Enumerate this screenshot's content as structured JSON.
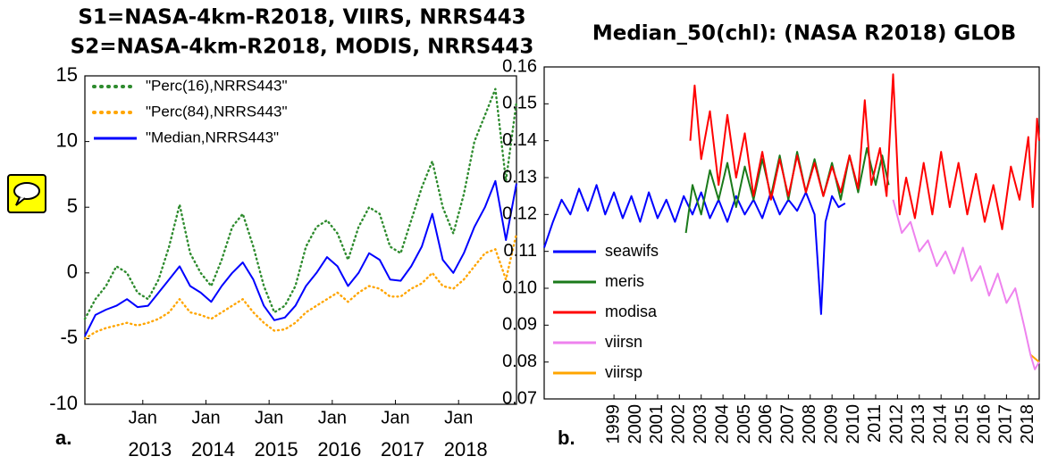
{
  "chart_data": [
    {
      "type": "line",
      "title": [
        "S1=NASA-4km-R2018, VIIRS, NRRS443",
        "S2=NASA-4km-R2018, MODIS, NRRS443"
      ],
      "panel_label": "a.",
      "x": [
        "2012-02",
        "2012-04",
        "2012-06",
        "2012-08",
        "2012-10",
        "2012-12",
        "2013-02",
        "2013-04",
        "2013-06",
        "2013-08",
        "2013-10",
        "2013-12",
        "2014-02",
        "2014-04",
        "2014-06",
        "2014-08",
        "2014-10",
        "2014-12",
        "2015-02",
        "2015-04",
        "2015-06",
        "2015-08",
        "2015-10",
        "2015-12",
        "2016-02",
        "2016-04",
        "2016-06",
        "2016-08",
        "2016-10",
        "2016-12",
        "2017-02",
        "2017-04",
        "2017-06",
        "2017-08",
        "2017-10",
        "2017-12",
        "2018-02",
        "2018-04",
        "2018-06",
        "2018-08",
        "2018-10",
        "2018-12"
      ],
      "xlim": [
        "2012-02",
        "2018-12"
      ],
      "xticks": [
        {
          "value": "2013-01",
          "label": "Jan"
        },
        {
          "value": "2014-01",
          "label": "Jan"
        },
        {
          "value": "2015-01",
          "label": "Jan"
        },
        {
          "value": "2016-01",
          "label": "Jan"
        },
        {
          "value": "2017-01",
          "label": "Jan"
        },
        {
          "value": "2018-01",
          "label": "Jan"
        }
      ],
      "year_labels": [
        2013,
        2014,
        2015,
        2016,
        2017,
        2018
      ],
      "ylim": [
        -10,
        15
      ],
      "yticks": [
        -10,
        -5,
        0,
        5,
        10,
        15
      ],
      "grid": false,
      "legend": "upper left",
      "series": [
        {
          "name": "\"Perc(16),NRRS443\"",
          "color": "#2e8b2e",
          "linestyle": "dotted",
          "values": [
            -3.5,
            -2.0,
            -1.0,
            0.5,
            0.0,
            -1.5,
            -2.0,
            -0.5,
            2.0,
            5.2,
            1.5,
            0.0,
            -1.0,
            1.0,
            3.5,
            4.5,
            2.0,
            -1.0,
            -3.0,
            -2.5,
            -1.0,
            2.0,
            3.5,
            4.0,
            3.0,
            1.0,
            3.5,
            5.0,
            4.5,
            2.0,
            1.5,
            4.0,
            6.5,
            8.5,
            5.0,
            3.0,
            6.0,
            10.0,
            12.0,
            14.0,
            7.0,
            13.0
          ]
        },
        {
          "name": "\"Perc(84),NRRS443\"",
          "color": "#ffa500",
          "linestyle": "dotted",
          "values": [
            -5.0,
            -4.5,
            -4.2,
            -4.0,
            -3.8,
            -4.0,
            -3.8,
            -3.5,
            -3.0,
            -2.0,
            -3.0,
            -3.2,
            -3.5,
            -3.0,
            -2.5,
            -2.0,
            -3.0,
            -3.8,
            -4.4,
            -4.3,
            -3.8,
            -3.0,
            -2.5,
            -2.0,
            -1.5,
            -2.2,
            -1.5,
            -1.0,
            -1.2,
            -1.8,
            -1.8,
            -1.2,
            -0.8,
            0.0,
            -1.0,
            -1.2,
            -0.5,
            0.5,
            1.5,
            1.8,
            -0.5,
            3.0
          ]
        },
        {
          "name": "\"Median,NRRS443\"",
          "color": "#0000ff",
          "linestyle": "solid",
          "values": [
            -4.8,
            -3.2,
            -2.8,
            -2.5,
            -2.0,
            -2.6,
            -2.5,
            -1.5,
            -0.5,
            0.5,
            -1.0,
            -1.5,
            -2.2,
            -1.0,
            0.0,
            0.8,
            -0.5,
            -2.5,
            -3.6,
            -3.4,
            -2.5,
            -1.0,
            0.0,
            1.2,
            0.5,
            -1.0,
            0.0,
            1.5,
            1.0,
            -0.5,
            -0.6,
            0.5,
            2.0,
            4.5,
            1.0,
            0.0,
            1.5,
            3.5,
            5.0,
            7.0,
            2.5,
            6.8
          ]
        }
      ]
    },
    {
      "type": "line",
      "title": [
        "Median_50(chl): (NASA R2018) GLOB"
      ],
      "panel_label": "b.",
      "xlim": [
        1995.8,
        2018.5
      ],
      "xticks": [
        1999,
        2000,
        2001,
        2002,
        2003,
        2004,
        2005,
        2006,
        2007,
        2008,
        2009,
        2010,
        2011,
        2012,
        2013,
        2014,
        2015,
        2016,
        2017,
        2018
      ],
      "ylim": [
        0.07,
        0.16
      ],
      "yticks": [
        0.07,
        0.08,
        0.09,
        {
          "value": 0.1,
          "label": "0.10"
        },
        0.11,
        0.12,
        0.13,
        0.14,
        0.15,
        0.16
      ],
      "grid": false,
      "legend": "lower left",
      "series": [
        {
          "name": "seawifs",
          "color": "#0000ff",
          "linestyle": "solid",
          "x": [
            1995.8,
            1996.2,
            1996.6,
            1997.0,
            1997.4,
            1997.8,
            1998.2,
            1998.6,
            1999.0,
            1999.4,
            1999.8,
            2000.2,
            2000.6,
            2001.0,
            2001.4,
            2001.8,
            2002.2,
            2002.6,
            2003.0,
            2003.4,
            2003.8,
            2004.2,
            2004.6,
            2005.0,
            2005.4,
            2005.8,
            2006.2,
            2006.6,
            2007.0,
            2007.4,
            2007.8,
            2008.2,
            2008.5,
            2008.7,
            2009.0,
            2009.3,
            2009.6
          ],
          "values": [
            0.111,
            0.118,
            0.124,
            0.12,
            0.127,
            0.121,
            0.128,
            0.12,
            0.126,
            0.119,
            0.125,
            0.118,
            0.126,
            0.119,
            0.124,
            0.118,
            0.125,
            0.12,
            0.126,
            0.119,
            0.124,
            0.118,
            0.125,
            0.12,
            0.124,
            0.119,
            0.126,
            0.12,
            0.124,
            0.121,
            0.126,
            0.12,
            0.093,
            0.118,
            0.125,
            0.122,
            0.123
          ]
        },
        {
          "name": "meris",
          "color": "#1a7a1a",
          "linestyle": "solid",
          "x": [
            2002.3,
            2002.6,
            2003.0,
            2003.4,
            2003.8,
            2004.2,
            2004.6,
            2005.0,
            2005.4,
            2005.8,
            2006.2,
            2006.6,
            2007.0,
            2007.4,
            2007.8,
            2008.2,
            2008.6,
            2009.0,
            2009.4,
            2009.8,
            2010.2,
            2010.6,
            2011.0,
            2011.3,
            2011.6
          ],
          "values": [
            0.115,
            0.128,
            0.12,
            0.132,
            0.124,
            0.134,
            0.122,
            0.133,
            0.124,
            0.135,
            0.125,
            0.136,
            0.124,
            0.137,
            0.126,
            0.135,
            0.125,
            0.134,
            0.124,
            0.136,
            0.126,
            0.138,
            0.128,
            0.136,
            0.128
          ]
        },
        {
          "name": "modisa",
          "color": "#ff0000",
          "linestyle": "solid",
          "x": [
            2002.5,
            2002.7,
            2003.0,
            2003.4,
            2003.8,
            2004.2,
            2004.6,
            2005.0,
            2005.4,
            2005.8,
            2006.2,
            2006.6,
            2007.0,
            2007.4,
            2007.8,
            2008.2,
            2008.6,
            2009.0,
            2009.4,
            2009.8,
            2010.2,
            2010.5,
            2010.8,
            2011.2,
            2011.5,
            2011.8,
            2012.1,
            2012.4,
            2012.8,
            2013.2,
            2013.6,
            2014.0,
            2014.4,
            2014.8,
            2015.2,
            2015.6,
            2016.0,
            2016.4,
            2016.8,
            2017.2,
            2017.6,
            2018.0,
            2018.2,
            2018.4,
            2018.5
          ],
          "values": [
            0.14,
            0.155,
            0.135,
            0.148,
            0.128,
            0.147,
            0.13,
            0.142,
            0.125,
            0.137,
            0.124,
            0.135,
            0.125,
            0.136,
            0.126,
            0.134,
            0.125,
            0.133,
            0.126,
            0.136,
            0.127,
            0.151,
            0.128,
            0.138,
            0.125,
            0.158,
            0.12,
            0.13,
            0.119,
            0.134,
            0.12,
            0.137,
            0.122,
            0.134,
            0.12,
            0.131,
            0.118,
            0.128,
            0.116,
            0.133,
            0.124,
            0.141,
            0.122,
            0.146,
            0.14
          ]
        },
        {
          "name": "viirsn",
          "color": "#ee82ee",
          "linestyle": "solid",
          "x": [
            2011.8,
            2012.2,
            2012.6,
            2013.0,
            2013.4,
            2013.8,
            2014.2,
            2014.6,
            2015.0,
            2015.4,
            2015.8,
            2016.2,
            2016.6,
            2017.0,
            2017.4,
            2017.8,
            2018.1,
            2018.3,
            2018.5
          ],
          "values": [
            0.124,
            0.115,
            0.118,
            0.11,
            0.113,
            0.106,
            0.11,
            0.104,
            0.111,
            0.102,
            0.106,
            0.098,
            0.104,
            0.096,
            0.1,
            0.09,
            0.082,
            0.078,
            0.08
          ]
        },
        {
          "name": "viirsp",
          "color": "#ffa500",
          "linestyle": "solid",
          "x": [
            2018.1,
            2018.5
          ],
          "values": [
            0.082,
            0.08
          ]
        }
      ]
    }
  ]
}
